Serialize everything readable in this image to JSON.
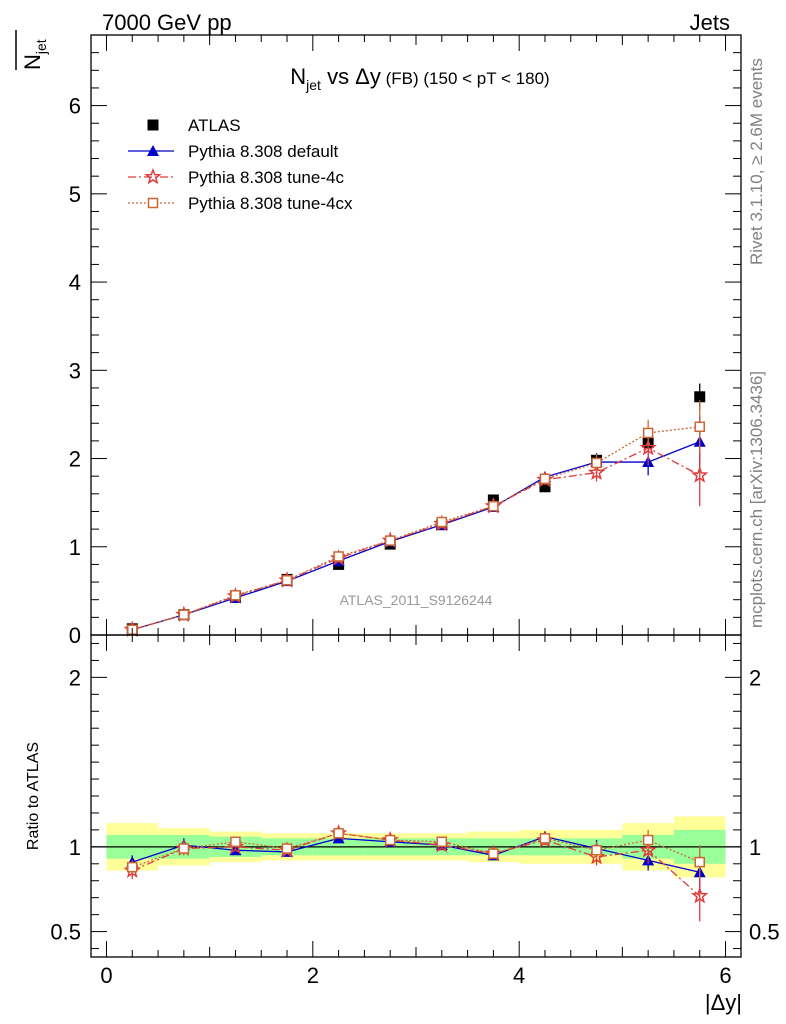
{
  "header": {
    "left": "7000 GeV pp",
    "right": "Jets"
  },
  "side_labels": {
    "rivet": "Rivet 3.1.10, ≥ 2.6M events",
    "mcplots": "mcplots.cern.ch [arXiv:1306.3436]"
  },
  "watermark": "ATLAS_2011_S9126244",
  "colors": {
    "atlas": "#000000",
    "default": "#0000cc",
    "tune4c": "#e03c3c",
    "tune4cx": "#cc6633",
    "band_inner": "#99ff99",
    "band_outer": "#ffff99"
  },
  "chart_data": [
    {
      "type": "scatter",
      "panel": "main",
      "title_parts": {
        "n": "N",
        "sub": "jet",
        "vs": " vs Δy",
        "fb": " (FB)",
        "range": " (150 < pT < 180)"
      },
      "ylabel_parts": {
        "n": "N",
        "sub": "jet"
      },
      "xlim": [
        -0.15,
        6.15
      ],
      "ylim": [
        0,
        6.8
      ],
      "y_ticks": [
        0,
        1,
        2,
        3,
        4,
        5,
        6
      ],
      "y_tick_labels": [
        "0",
        "1",
        "2",
        "3",
        "4",
        "5",
        "6"
      ],
      "x": [
        0.25,
        0.75,
        1.25,
        1.75,
        2.25,
        2.75,
        3.25,
        3.75,
        4.25,
        4.75,
        5.25,
        5.75
      ],
      "series": [
        {
          "name": "ATLAS",
          "key": "atlas",
          "marker": "square",
          "values": [
            0.07,
            0.23,
            0.44,
            0.63,
            0.8,
            1.03,
            1.25,
            1.53,
            1.68,
            1.98,
            2.18,
            2.7
          ],
          "errors": [
            0.01,
            0.01,
            0.02,
            0.02,
            0.02,
            0.03,
            0.03,
            0.04,
            0.05,
            0.07,
            0.1,
            0.15
          ]
        },
        {
          "name": "Pythia 8.308 default",
          "key": "default",
          "marker": "triangle",
          "values": [
            0.06,
            0.23,
            0.42,
            0.61,
            0.84,
            1.06,
            1.25,
            1.45,
            1.79,
            1.96,
            1.96,
            2.19
          ],
          "errors": [
            0.005,
            0.01,
            0.01,
            0.02,
            0.02,
            0.02,
            0.03,
            0.03,
            0.06,
            0.1,
            0.15,
            0.3
          ]
        },
        {
          "name": "Pythia 8.308 tune-4c",
          "key": "tune4c",
          "marker": "star",
          "values": [
            0.06,
            0.23,
            0.44,
            0.62,
            0.87,
            1.07,
            1.26,
            1.46,
            1.76,
            1.84,
            2.12,
            1.81
          ],
          "errors": [
            0.005,
            0.01,
            0.01,
            0.02,
            0.02,
            0.02,
            0.03,
            0.03,
            0.06,
            0.1,
            0.2,
            0.35
          ]
        },
        {
          "name": "Pythia 8.308 tune-4cx",
          "key": "tune4cx",
          "marker": "open-square",
          "values": [
            0.06,
            0.23,
            0.45,
            0.62,
            0.89,
            1.07,
            1.28,
            1.46,
            1.77,
            1.95,
            2.29,
            2.36
          ],
          "errors": [
            0.005,
            0.01,
            0.01,
            0.02,
            0.02,
            0.02,
            0.03,
            0.03,
            0.06,
            0.1,
            0.15,
            0.3
          ]
        }
      ]
    },
    {
      "type": "scatter",
      "panel": "ratio",
      "ylabel": "Ratio to ATLAS",
      "xlabel": "|Δy|",
      "xlim": [
        -0.15,
        6.15
      ],
      "ylim": [
        0.35,
        2.25
      ],
      "x_ticks": [
        0,
        2,
        4,
        6
      ],
      "x_tick_labels": [
        "0",
        "2",
        "4",
        "6"
      ],
      "y_ticks": [
        0.5,
        1,
        2
      ],
      "y_tick_labels": [
        "0.5",
        "1",
        "2"
      ],
      "x_edges": [
        0,
        0.5,
        1,
        1.5,
        2,
        2.5,
        3,
        3.5,
        4,
        4.5,
        5,
        5.5,
        6
      ],
      "band_inner": [
        0.07,
        0.07,
        0.06,
        0.05,
        0.05,
        0.05,
        0.05,
        0.05,
        0.05,
        0.05,
        0.07,
        0.1
      ],
      "band_outer": [
        0.14,
        0.11,
        0.09,
        0.08,
        0.08,
        0.08,
        0.08,
        0.09,
        0.1,
        0.1,
        0.14,
        0.18
      ],
      "x": [
        0.25,
        0.75,
        1.25,
        1.75,
        2.25,
        2.75,
        3.25,
        3.75,
        4.25,
        4.75,
        5.25,
        5.75
      ],
      "series": [
        {
          "name": "Pythia 8.308 default",
          "key": "default",
          "marker": "triangle",
          "values": [
            0.91,
            1.01,
            0.98,
            0.97,
            1.05,
            1.03,
            1.01,
            0.95,
            1.06,
            0.99,
            0.92,
            0.85
          ],
          "errors": [
            0.04,
            0.04,
            0.02,
            0.02,
            0.02,
            0.02,
            0.02,
            0.02,
            0.03,
            0.05,
            0.06,
            0.1
          ]
        },
        {
          "name": "Pythia 8.308 tune-4c",
          "key": "tune4c",
          "marker": "star",
          "values": [
            0.86,
            0.99,
            1.0,
            0.98,
            1.08,
            1.04,
            1.01,
            0.96,
            1.04,
            0.94,
            0.98,
            0.71
          ],
          "errors": [
            0.05,
            0.04,
            0.02,
            0.02,
            0.02,
            0.02,
            0.02,
            0.02,
            0.03,
            0.05,
            0.08,
            0.15
          ]
        },
        {
          "name": "Pythia 8.308 tune-4cx",
          "key": "tune4cx",
          "marker": "open-square",
          "values": [
            0.88,
            0.99,
            1.03,
            0.99,
            1.08,
            1.04,
            1.03,
            0.96,
            1.05,
            0.98,
            1.04,
            0.91
          ],
          "errors": [
            0.04,
            0.04,
            0.02,
            0.02,
            0.02,
            0.02,
            0.02,
            0.02,
            0.03,
            0.05,
            0.06,
            0.1
          ]
        }
      ]
    }
  ]
}
